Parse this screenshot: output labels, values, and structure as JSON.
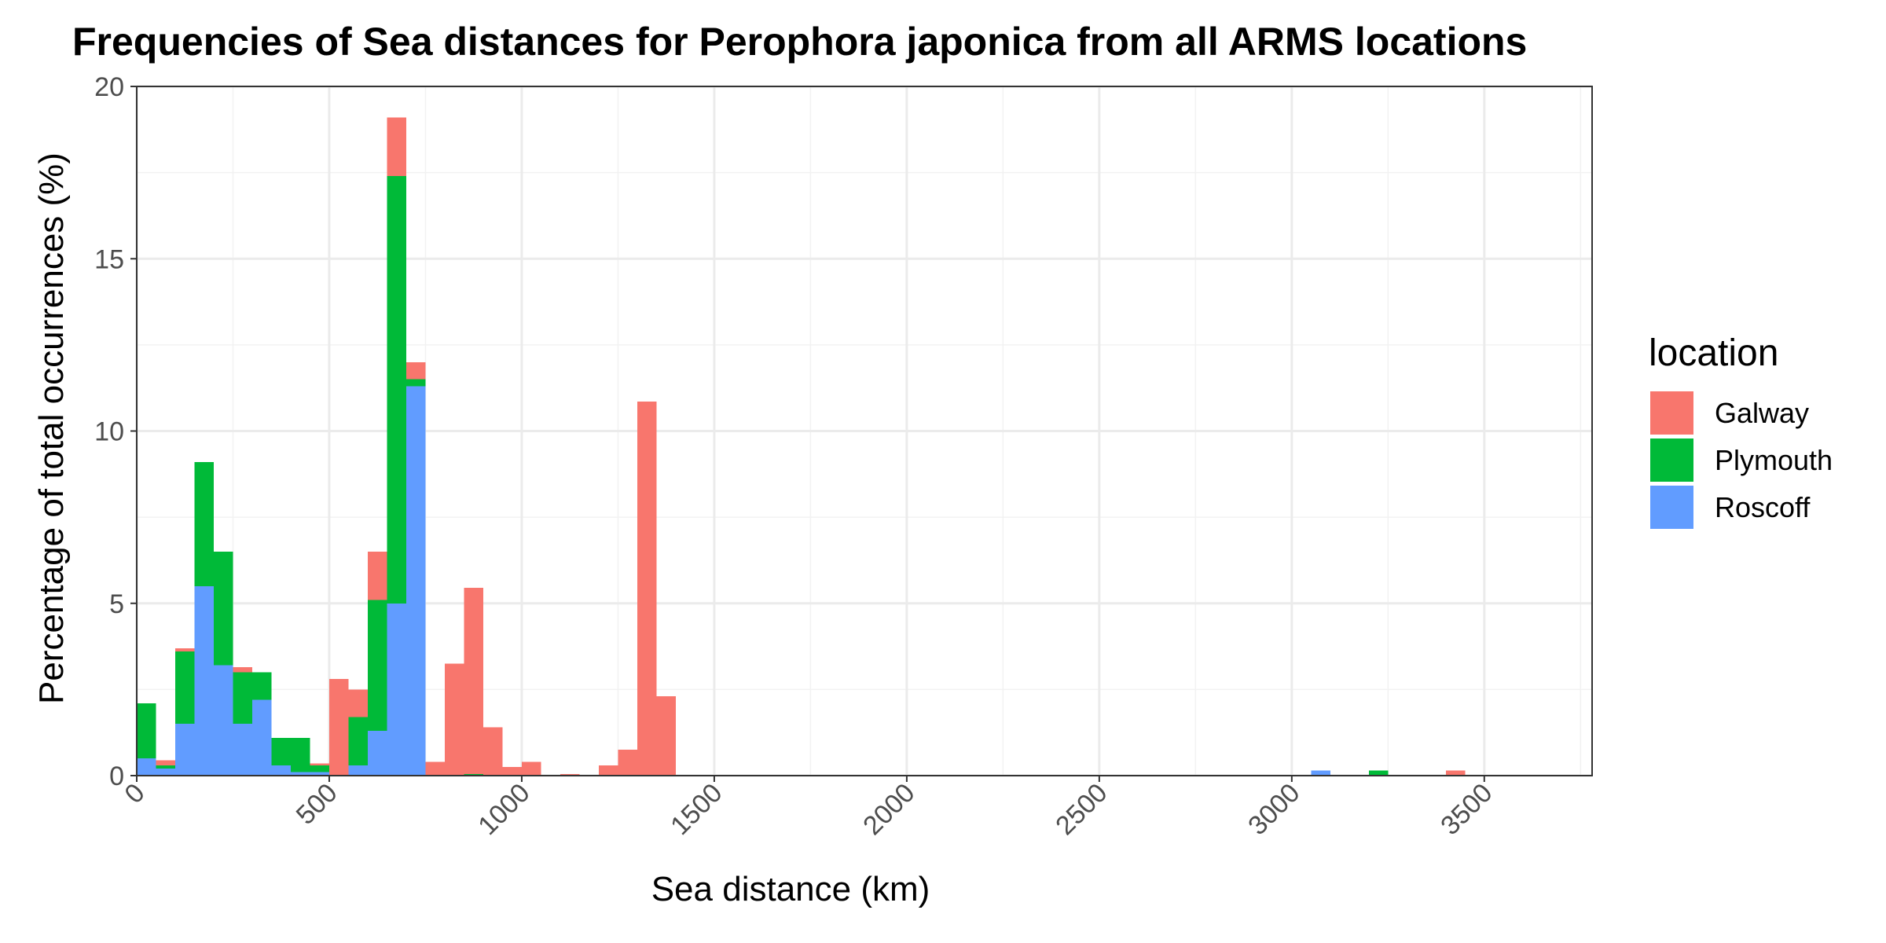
{
  "chart_data": {
    "type": "bar",
    "stacked": true,
    "title": "Frequencies of Sea distances for Perophora japonica from all ARMS locations",
    "xlabel": "Sea distance (km)",
    "ylabel": "Percentage of total occurrences (%)",
    "xlim": [
      0,
      3780
    ],
    "ylim": [
      0,
      20
    ],
    "bin_width": 50,
    "x_ticks": [
      0,
      500,
      1000,
      1500,
      2000,
      2500,
      3000,
      3500
    ],
    "x_tick_labels": [
      "0",
      "500",
      "1000",
      "1500",
      "2000",
      "2500",
      "3000",
      "3500"
    ],
    "y_ticks": [
      0,
      5,
      10,
      15,
      20
    ],
    "y_tick_labels": [
      "0",
      "5",
      "10",
      "15",
      "20"
    ],
    "grid": true,
    "legend": {
      "title": "location",
      "position": "right"
    },
    "series": [
      {
        "name": "Roscoff",
        "color": "#619CFF",
        "bins": [
          [
            0,
            0.5
          ],
          [
            50,
            0.2
          ],
          [
            100,
            1.5
          ],
          [
            150,
            5.5
          ],
          [
            200,
            3.2
          ],
          [
            250,
            1.5
          ],
          [
            300,
            2.2
          ],
          [
            350,
            0.3
          ],
          [
            400,
            0.1
          ],
          [
            450,
            0.1
          ],
          [
            550,
            0.3
          ],
          [
            600,
            1.3
          ],
          [
            650,
            5.0
          ],
          [
            700,
            11.3
          ],
          [
            3050,
            0.15
          ]
        ]
      },
      {
        "name": "Plymouth",
        "color": "#00BA38",
        "bins": [
          [
            0,
            1.6
          ],
          [
            50,
            0.1
          ],
          [
            100,
            2.1
          ],
          [
            150,
            3.6
          ],
          [
            200,
            3.3
          ],
          [
            250,
            1.5
          ],
          [
            300,
            0.8
          ],
          [
            350,
            0.8
          ],
          [
            400,
            1.0
          ],
          [
            450,
            0.2
          ],
          [
            550,
            1.4
          ],
          [
            600,
            3.8
          ],
          [
            650,
            12.4
          ],
          [
            700,
            0.2
          ],
          [
            850,
            0.05
          ],
          [
            3200,
            0.15
          ]
        ]
      },
      {
        "name": "Galway",
        "color": "#F8766D",
        "bins": [
          [
            50,
            0.15
          ],
          [
            100,
            0.1
          ],
          [
            250,
            0.15
          ],
          [
            450,
            0.05
          ],
          [
            500,
            2.8
          ],
          [
            550,
            0.8
          ],
          [
            600,
            1.4
          ],
          [
            650,
            1.7
          ],
          [
            700,
            0.5
          ],
          [
            750,
            0.4
          ],
          [
            800,
            3.25
          ],
          [
            850,
            5.4
          ],
          [
            900,
            1.4
          ],
          [
            950,
            0.25
          ],
          [
            1000,
            0.4
          ],
          [
            1100,
            0.05
          ],
          [
            1200,
            0.3
          ],
          [
            1250,
            0.75
          ],
          [
            1300,
            10.85
          ],
          [
            1350,
            2.3
          ],
          [
            3400,
            0.15
          ]
        ]
      }
    ],
    "legend_order": [
      "Galway",
      "Plymouth",
      "Roscoff"
    ]
  }
}
